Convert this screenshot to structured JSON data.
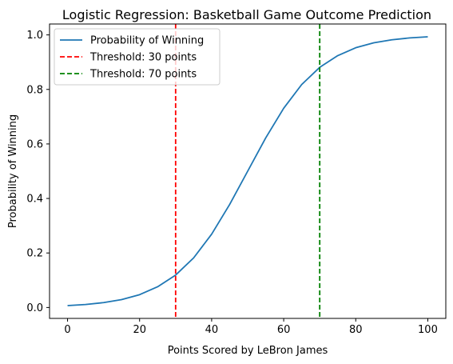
{
  "chart_data": {
    "type": "line",
    "title": "Logistic Regression: Basketball Game Outcome Prediction",
    "xlabel": "Points Scored by LeBron James",
    "ylabel": "Probability of Winning",
    "xlim": [
      -5,
      105
    ],
    "ylim": [
      -0.04,
      1.04
    ],
    "xticks": [
      0,
      20,
      40,
      60,
      80,
      100
    ],
    "xtick_labels": [
      "0",
      "20",
      "40",
      "60",
      "80",
      "100"
    ],
    "yticks": [
      0.0,
      0.2,
      0.4,
      0.6,
      0.8,
      1.0
    ],
    "ytick_labels": [
      "0.0",
      "0.2",
      "0.4",
      "0.6",
      "0.8",
      "1.0"
    ],
    "grid": false,
    "legend_position": "top-left",
    "series": [
      {
        "name": "Probability of Winning",
        "color": "#1f77b4",
        "x": [
          0,
          5,
          10,
          15,
          20,
          25,
          30,
          35,
          40,
          45,
          50,
          55,
          60,
          65,
          70,
          75,
          80,
          85,
          90,
          95,
          100
        ],
        "y": [
          0.007,
          0.011,
          0.018,
          0.029,
          0.047,
          0.076,
          0.119,
          0.182,
          0.269,
          0.378,
          0.5,
          0.622,
          0.731,
          0.818,
          0.881,
          0.924,
          0.953,
          0.971,
          0.982,
          0.989,
          0.993
        ]
      }
    ],
    "vlines": [
      {
        "name": "Threshold: 30 points",
        "x": 30,
        "color": "#ff0000",
        "style": "dashed"
      },
      {
        "name": "Threshold: 70 points",
        "x": 70,
        "color": "#008000",
        "style": "dashed"
      }
    ]
  }
}
